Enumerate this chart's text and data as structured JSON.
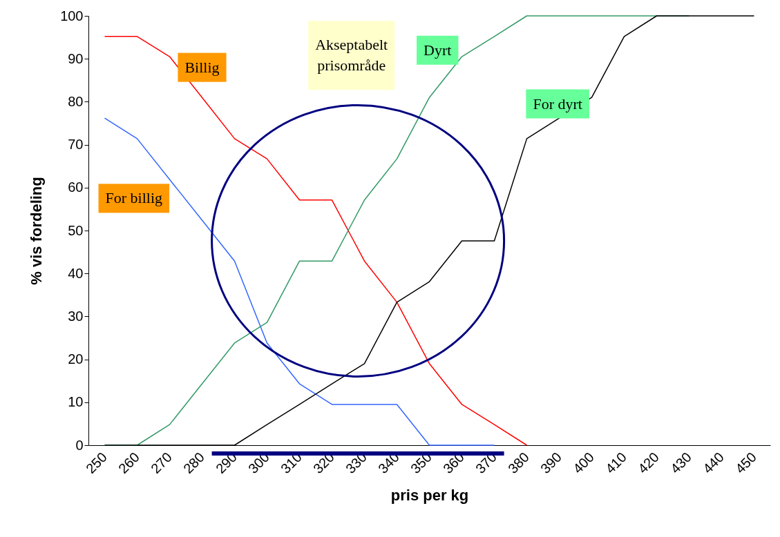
{
  "chart_data": {
    "type": "line",
    "xlabel": "pris per kg",
    "ylabel": "% vis fordeling",
    "categories": [
      "250",
      "260",
      "270",
      "280",
      "290",
      "300",
      "310",
      "320",
      "330",
      "340",
      "350",
      "360",
      "370",
      "380",
      "390",
      "400",
      "410",
      "420",
      "430",
      "440",
      "450"
    ],
    "series": [
      {
        "name": "Billig",
        "color": "#ff0000",
        "values": [
          95.2,
          95.2,
          90.5,
          81,
          71.4,
          66.7,
          57.1,
          57.1,
          42.9,
          33.3,
          19,
          9.5,
          4.8,
          0,
          null,
          null,
          null,
          null,
          null,
          null,
          null
        ]
      },
      {
        "name": "For billig",
        "color": "#3366ff",
        "values": [
          76.2,
          71.4,
          61.9,
          52.4,
          42.9,
          23.8,
          14.3,
          9.5,
          9.5,
          9.5,
          0,
          0,
          0,
          null,
          null,
          null,
          null,
          null,
          null,
          null,
          null
        ]
      },
      {
        "name": "Dyrt",
        "color": "#339966",
        "values": [
          0,
          0,
          4.8,
          14.3,
          23.8,
          28.6,
          42.9,
          42.9,
          57.1,
          66.7,
          81,
          90.5,
          95.2,
          100,
          100,
          100,
          100,
          100,
          100,
          null,
          null
        ]
      },
      {
        "name": "For dyrt",
        "color": "#000000",
        "values": [
          0,
          0,
          0,
          0,
          0,
          4.8,
          9.5,
          14.3,
          19,
          33.3,
          38.1,
          47.6,
          47.6,
          71.4,
          76.2,
          81,
          95.2,
          100,
          100,
          100,
          100
        ]
      }
    ],
    "ylim": [
      0,
      100
    ],
    "yticks": [
      0,
      10,
      20,
      30,
      40,
      50,
      60,
      70,
      80,
      90,
      100
    ],
    "grid": false,
    "legend": false,
    "marker": "none",
    "line_style": "solid",
    "annotations": [
      "Akseptabelt prisområde"
    ]
  }
}
